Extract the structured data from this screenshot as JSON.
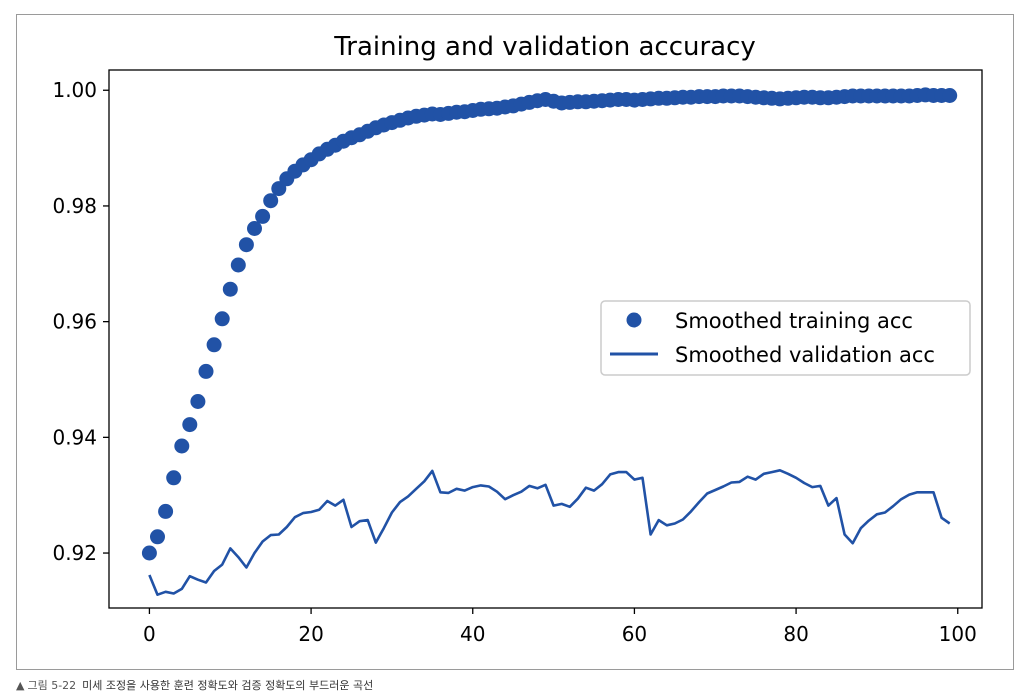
{
  "caption": {
    "marker": "▲",
    "figure_number": "그림 5-22",
    "text": "미세 조정을 사용한 훈련 정확도와 검증 정확도의 부드러운 곡선"
  },
  "chart_data": {
    "type": "line",
    "title": "Training and validation accuracy",
    "xlabel": "",
    "ylabel": "",
    "xlim": [
      -5,
      103
    ],
    "ylim": [
      0.9105,
      1.0035
    ],
    "xticks": [
      0,
      20,
      40,
      60,
      80,
      100
    ],
    "yticks": [
      0.92,
      0.94,
      0.96,
      0.98,
      1.0
    ],
    "xtick_labels": [
      "0",
      "20",
      "40",
      "60",
      "80",
      "100"
    ],
    "ytick_labels": [
      "0.92",
      "0.94",
      "0.96",
      "0.98",
      "1.00"
    ],
    "grid": false,
    "legend_position": "center-right",
    "color": "#2152a6",
    "series": [
      {
        "name": "Smoothed training acc",
        "style": "markers",
        "x": [
          0,
          1,
          2,
          3,
          4,
          5,
          6,
          7,
          8,
          9,
          10,
          11,
          12,
          13,
          14,
          15,
          16,
          17,
          18,
          19,
          20,
          21,
          22,
          23,
          24,
          25,
          26,
          27,
          28,
          29,
          30,
          31,
          32,
          33,
          34,
          35,
          36,
          37,
          38,
          39,
          40,
          41,
          42,
          43,
          44,
          45,
          46,
          47,
          48,
          49,
          50,
          51,
          52,
          53,
          54,
          55,
          56,
          57,
          58,
          59,
          60,
          61,
          62,
          63,
          64,
          65,
          66,
          67,
          68,
          69,
          70,
          71,
          72,
          73,
          74,
          75,
          76,
          77,
          78,
          79,
          80,
          81,
          82,
          83,
          84,
          85,
          86,
          87,
          88,
          89,
          90,
          91,
          92,
          93,
          94,
          95,
          96,
          97,
          98,
          99
        ],
        "y": [
          0.92,
          0.9228,
          0.9272,
          0.933,
          0.9385,
          0.9422,
          0.9462,
          0.9514,
          0.956,
          0.9605,
          0.9656,
          0.9698,
          0.9733,
          0.9761,
          0.9782,
          0.9809,
          0.983,
          0.9847,
          0.986,
          0.9871,
          0.988,
          0.989,
          0.9898,
          0.9905,
          0.9912,
          0.9918,
          0.9923,
          0.9929,
          0.9935,
          0.994,
          0.9944,
          0.9948,
          0.9952,
          0.9955,
          0.9957,
          0.9959,
          0.9958,
          0.996,
          0.9962,
          0.9963,
          0.9965,
          0.9967,
          0.9968,
          0.9969,
          0.9971,
          0.9973,
          0.9976,
          0.9979,
          0.9982,
          0.9984,
          0.9981,
          0.9978,
          0.9979,
          0.998,
          0.998,
          0.9981,
          0.9982,
          0.9983,
          0.9984,
          0.9984,
          0.9983,
          0.9984,
          0.9985,
          0.9986,
          0.9986,
          0.9987,
          0.9988,
          0.9988,
          0.9989,
          0.9989,
          0.9989,
          0.999,
          0.999,
          0.999,
          0.9989,
          0.9988,
          0.9987,
          0.9986,
          0.9985,
          0.9986,
          0.9987,
          0.9988,
          0.9988,
          0.9987,
          0.9987,
          0.9988,
          0.9989,
          0.999,
          0.999,
          0.999,
          0.999,
          0.999,
          0.999,
          0.999,
          0.999,
          0.9991,
          0.9992,
          0.9991,
          0.9991,
          0.9991
        ]
      },
      {
        "name": "Smoothed validation acc",
        "style": "line",
        "x": [
          0,
          1,
          2,
          3,
          4,
          5,
          6,
          7,
          8,
          9,
          10,
          11,
          12,
          13,
          14,
          15,
          16,
          17,
          18,
          19,
          20,
          21,
          22,
          23,
          24,
          25,
          26,
          27,
          28,
          29,
          30,
          31,
          32,
          33,
          34,
          35,
          36,
          37,
          38,
          39,
          40,
          41,
          42,
          43,
          44,
          45,
          46,
          47,
          48,
          49,
          50,
          51,
          52,
          53,
          54,
          55,
          56,
          57,
          58,
          59,
          60,
          61,
          62,
          63,
          64,
          65,
          66,
          67,
          68,
          69,
          70,
          71,
          72,
          73,
          74,
          75,
          76,
          77,
          78,
          79,
          80,
          81,
          82,
          83,
          84,
          85,
          86,
          87,
          88,
          89,
          90,
          91,
          92,
          93,
          94,
          95,
          96,
          97,
          98,
          99
        ],
        "y": [
          0.9162,
          0.9128,
          0.9133,
          0.913,
          0.9138,
          0.916,
          0.9154,
          0.9149,
          0.9169,
          0.918,
          0.9208,
          0.9193,
          0.9175,
          0.92,
          0.922,
          0.9231,
          0.9232,
          0.9245,
          0.9262,
          0.9269,
          0.9271,
          0.9275,
          0.929,
          0.9282,
          0.9292,
          0.9245,
          0.9255,
          0.9257,
          0.9218,
          0.9243,
          0.927,
          0.9288,
          0.9298,
          0.9311,
          0.9324,
          0.9342,
          0.9305,
          0.9304,
          0.9311,
          0.9308,
          0.9314,
          0.9317,
          0.9315,
          0.9306,
          0.9293,
          0.93,
          0.9306,
          0.9316,
          0.9312,
          0.9318,
          0.9282,
          0.9285,
          0.928,
          0.9294,
          0.9313,
          0.9308,
          0.9319,
          0.9336,
          0.934,
          0.934,
          0.9327,
          0.933,
          0.9232,
          0.9257,
          0.9248,
          0.9251,
          0.9258,
          0.9272,
          0.9288,
          0.9303,
          0.9309,
          0.9315,
          0.9322,
          0.9323,
          0.9332,
          0.9327,
          0.9337,
          0.934,
          0.9343,
          0.9337,
          0.933,
          0.9321,
          0.9314,
          0.9316,
          0.9282,
          0.9295,
          0.9232,
          0.9217,
          0.9243,
          0.9256,
          0.9267,
          0.927,
          0.9281,
          0.9293,
          0.9301,
          0.9305,
          0.9305,
          0.9305,
          0.9261,
          0.9251
        ]
      }
    ]
  }
}
